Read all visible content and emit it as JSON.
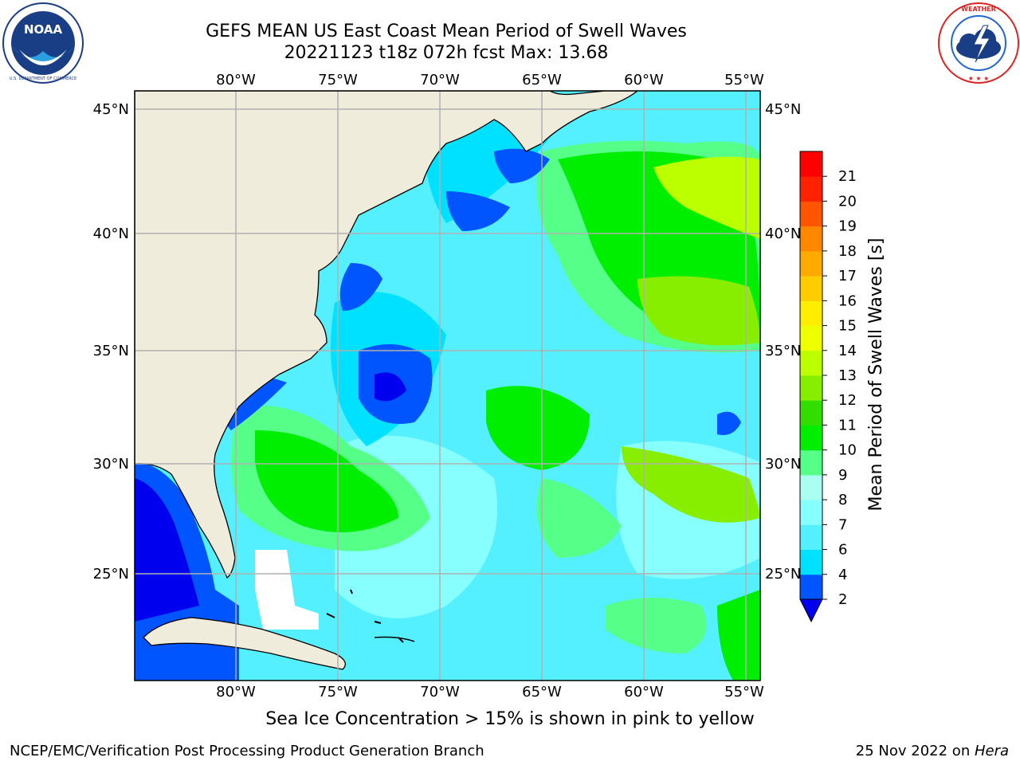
{
  "header": {
    "title_line1": "GEFS MEAN US East Coast Mean Period of Swell Waves",
    "title_line2": "20221123 t18z 072h fcst   Max: 13.68"
  },
  "logos": {
    "left": {
      "name": "NOAA",
      "ring_text": "NATIONAL OCEANIC AND ATMOSPHERIC ADMINISTRATION",
      "ring_text_bottom": "U.S. DEPARTMENT OF COMMERCE"
    },
    "right": {
      "ring_text": "NATIONAL WEATHER SERVICE"
    }
  },
  "map": {
    "lon_labels": [
      "80°W",
      "75°W",
      "70°W",
      "65°W",
      "60°W",
      "55°W"
    ],
    "lat_labels": [
      "45°N",
      "40°N",
      "35°N",
      "30°N",
      "25°N"
    ],
    "land_color": "#efecdc",
    "grid_color": "#b0b0b0"
  },
  "colorbar": {
    "label": "Mean Period of Swell Waves [s]",
    "ticks": [
      "2",
      "4",
      "6",
      "7",
      "8",
      "9",
      "10",
      "11",
      "12",
      "13",
      "14",
      "15",
      "16",
      "17",
      "18",
      "19",
      "20",
      "21"
    ],
    "colors": [
      "#0055ff",
      "#00e0ff",
      "#55f0ff",
      "#88ffff",
      "#aafff0",
      "#55ff88",
      "#00ee00",
      "#33dd00",
      "#88ee00",
      "#bbff00",
      "#eeff00",
      "#ffee00",
      "#ffcc00",
      "#ffaa00",
      "#ff8800",
      "#ff5500",
      "#ff2200",
      "#ff0000"
    ],
    "under_color": "#0000ee"
  },
  "footer": {
    "ice_note": "Sea Ice Concentration > 15% is shown in pink to yellow",
    "credit_left": "NCEP/EMC/Verification Post Processing Product Generation Branch",
    "credit_right_date": "25 Nov 2022 on ",
    "credit_right_host": "Hera"
  }
}
